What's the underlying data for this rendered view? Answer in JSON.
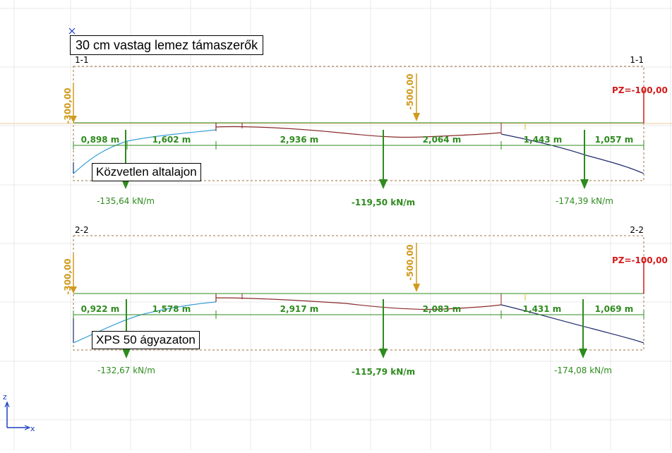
{
  "title": "30 cm vastag lemez támaszerők",
  "axes": {
    "z": "z",
    "x": "x"
  },
  "colors": {
    "load": "#d19a1c",
    "force": "#2e8b1e",
    "pz": "#d21a1a",
    "dim": "#2e8b1e",
    "grid": "#e6e6e6",
    "deformed_up": "#8b2a2a",
    "deformed_down": "#1f2a6b",
    "frame": "#a07040"
  },
  "sections": [
    {
      "id": "1-1",
      "label_left": "1-1",
      "label_right": "1-1",
      "caption": "Közvetlen altalajon",
      "load_left": "-300,00",
      "load_mid": "-500,00",
      "pz": "PZ=-100,00",
      "dims": [
        "0,898 m",
        "1,602 m",
        "2,936 m",
        "2,064 m",
        "1,443 m",
        "1,057 m"
      ],
      "reactions": [
        "-135,64 kN/m",
        "-119,50 kN/m",
        "-174,39 kN/m"
      ]
    },
    {
      "id": "2-2",
      "label_left": "2-2",
      "label_right": "2-2",
      "caption": "XPS 50 ágyazaton",
      "load_left": "-300,00",
      "load_mid": "-500,00",
      "pz": "PZ=-100,00",
      "dims": [
        "0,922 m",
        "1,578 m",
        "2,917 m",
        "2,083 m",
        "1,431 m",
        "1,069 m"
      ],
      "reactions": [
        "-132,67 kN/m",
        "-115,79 kN/m",
        "-174,08 kN/m"
      ]
    }
  ]
}
